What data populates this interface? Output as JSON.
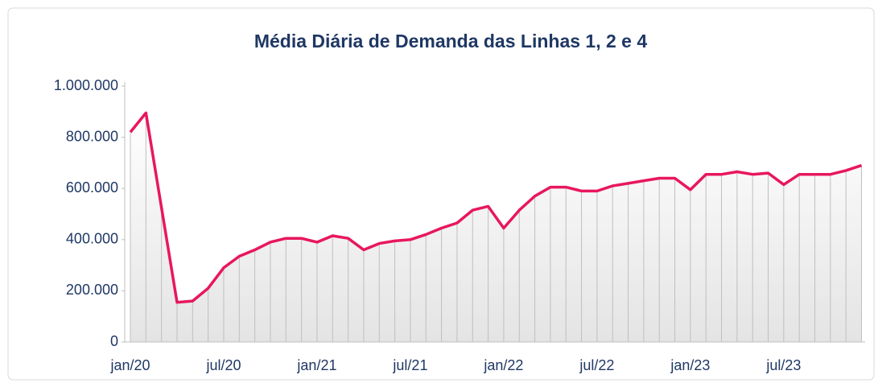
{
  "chart_data": {
    "type": "line",
    "title": "Média Diária de Demanda das Linhas 1, 2 e 4",
    "categories": [
      "jan/20",
      null,
      null,
      null,
      null,
      null,
      "jul/20",
      null,
      null,
      null,
      null,
      null,
      "jan/21",
      null,
      null,
      null,
      null,
      null,
      "jul/21",
      null,
      null,
      null,
      null,
      null,
      "jan/22",
      null,
      null,
      null,
      null,
      null,
      "jul/22",
      null,
      null,
      null,
      null,
      null,
      "jan/23",
      null,
      null,
      null,
      null,
      null,
      "jul/23",
      null,
      null,
      null,
      null,
      null
    ],
    "series": [
      {
        "name": "Média Diária",
        "color": "#e8175d",
        "values": [
          820000,
          895000,
          525000,
          155000,
          160000,
          210000,
          290000,
          335000,
          360000,
          390000,
          405000,
          405000,
          390000,
          415000,
          405000,
          360000,
          385000,
          395000,
          400000,
          420000,
          445000,
          465000,
          515000,
          530000,
          445000,
          515000,
          570000,
          605000,
          605000,
          590000,
          590000,
          610000,
          620000,
          630000,
          640000,
          640000,
          595000,
          655000,
          655000,
          665000,
          655000,
          660000,
          615000,
          655000,
          655000,
          655000,
          670000,
          690000
        ]
      }
    ],
    "ylim": [
      0,
      1000000
    ],
    "yticks": [
      0,
      {
        "value": 200000,
        "label": "200.000"
      },
      {
        "value": 400000,
        "label": "400.000"
      },
      {
        "value": 600000,
        "label": "600.000"
      },
      {
        "value": 800000,
        "label": "800.000"
      },
      {
        "value": 1000000,
        "label": "1.000.000"
      }
    ],
    "drop_lines": true
  }
}
